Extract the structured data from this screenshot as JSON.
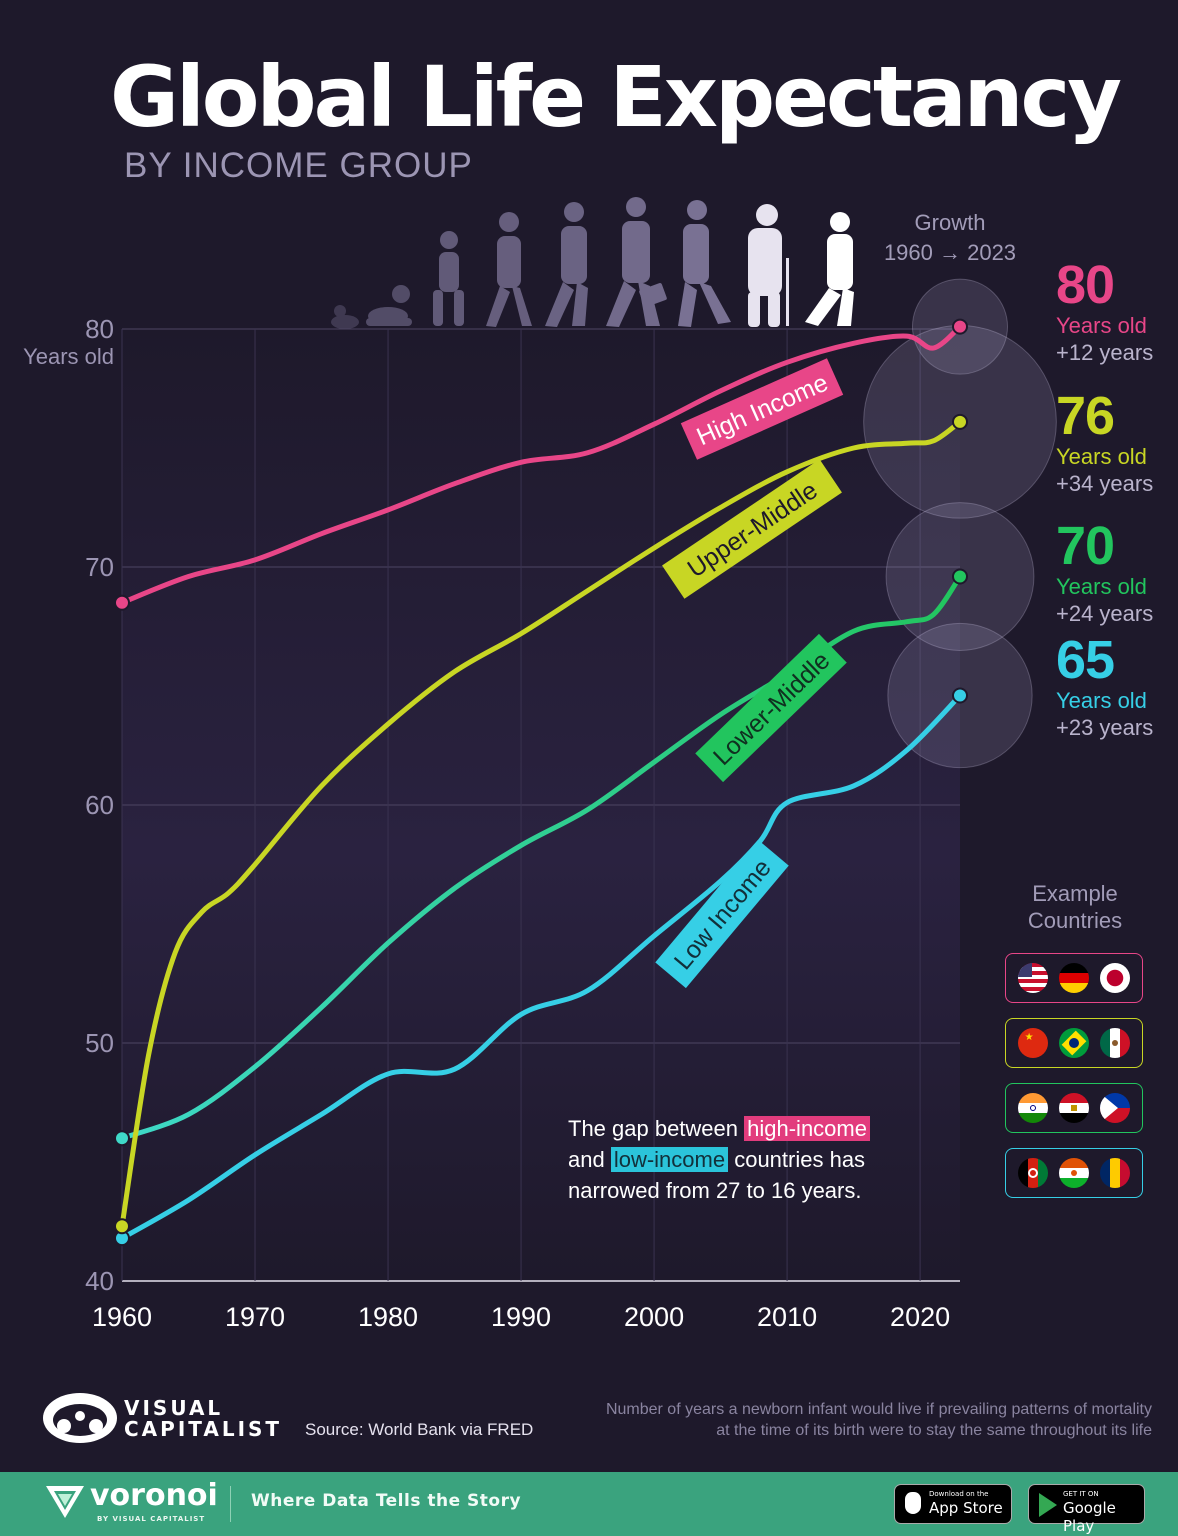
{
  "header": {
    "title": "Global Life Expectancy",
    "subtitle": "BY INCOME GROUP",
    "growth_heading_line1": "Growth",
    "growth_heading_line2": "1960 → 2023"
  },
  "y_axis_unit": "Years old",
  "end_labels": [
    {
      "value": "80",
      "unit": "Years old",
      "growth": "+12 years",
      "color": "#e84688"
    },
    {
      "value": "76",
      "unit": "Years old",
      "growth": "+34  years",
      "color": "#c8d624"
    },
    {
      "value": "70",
      "unit": "Years old",
      "growth": "+24 years",
      "color": "#22c55e"
    },
    {
      "value": "65",
      "unit": "Years old",
      "growth": "+23 years",
      "color": "#36cfe6"
    }
  ],
  "example_countries": {
    "heading_line1": "Example",
    "heading_line2": "Countries",
    "groups": [
      {
        "border": "#e84688",
        "flags": [
          "us-flag",
          "germany-flag",
          "japan-flag"
        ]
      },
      {
        "border": "#c8d624",
        "flags": [
          "china-flag",
          "brazil-flag",
          "mexico-flag"
        ]
      },
      {
        "border": "#22c55e",
        "flags": [
          "india-flag",
          "egypt-flag",
          "philippines-flag"
        ]
      },
      {
        "border": "#36cfe6",
        "flags": [
          "afghanistan-flag",
          "niger-flag",
          "chad-flag"
        ]
      }
    ]
  },
  "note": {
    "part1": "The gap between ",
    "highlight1": "high-income",
    "part2": "and ",
    "highlight2": "low-income",
    "part3": " countries has narrowed from 27 to 16 years."
  },
  "footer": {
    "logo_line1": "VISUAL",
    "logo_line2": "CAPITALIST",
    "source": "Source: World Bank via FRED",
    "definition": "Number of years a newborn infant would live if prevailing patterns of mortality at the time of its birth were to stay the same throughout its life",
    "brand": "voronoi",
    "brand_sub": "BY VISUAL CAPITALIST",
    "tagline": "Where Data Tells the Story",
    "app_store_small": "Download on the",
    "app_store": "App Store",
    "google_play_small": "GET IT ON",
    "google_play": "Google Play"
  },
  "chart_data": {
    "type": "line",
    "title": "Global Life Expectancy",
    "subtitle": "BY INCOME GROUP",
    "xlabel": "",
    "ylabel": "Years old",
    "xlim": [
      1960,
      2023
    ],
    "ylim": [
      40,
      80
    ],
    "x_ticks": [
      1960,
      1970,
      1980,
      1990,
      2000,
      2010,
      2020
    ],
    "y_ticks": [
      40,
      50,
      60,
      70,
      80
    ],
    "grid": true,
    "legend": "labels on lines",
    "series": [
      {
        "name": "High Income",
        "color": "#e84688",
        "x": [
          1960,
          1965,
          1970,
          1975,
          1980,
          1985,
          1990,
          1995,
          2000,
          2005,
          2010,
          2015,
          2019,
          2021,
          2023
        ],
        "y": [
          68.5,
          69.6,
          70.3,
          71.4,
          72.4,
          73.5,
          74.4,
          74.8,
          76.0,
          77.4,
          78.6,
          79.4,
          79.7,
          79.2,
          80.1
        ]
      },
      {
        "name": "Upper-Middle",
        "color": "#c8d624",
        "x": [
          1960,
          1962,
          1964,
          1966,
          1968,
          1970,
          1975,
          1980,
          1985,
          1990,
          1995,
          2000,
          2005,
          2010,
          2015,
          2019,
          2021,
          2023
        ],
        "y": [
          42.3,
          49.5,
          53.8,
          55.5,
          56.3,
          57.5,
          60.8,
          63.4,
          65.6,
          67.2,
          69.0,
          70.8,
          72.5,
          74.0,
          75.0,
          75.2,
          75.3,
          76.1
        ]
      },
      {
        "name": "Lower-Middle",
        "color": "#22c55e",
        "x": [
          1960,
          1965,
          1970,
          1975,
          1980,
          1985,
          1990,
          1995,
          2000,
          2005,
          2010,
          2015,
          2019,
          2021,
          2023
        ],
        "y": [
          46.0,
          47.0,
          49.0,
          51.5,
          54.2,
          56.5,
          58.3,
          59.8,
          61.8,
          63.8,
          65.5,
          67.3,
          67.7,
          68.0,
          69.6
        ]
      },
      {
        "name": "Low Income",
        "color": "#36cfe6",
        "x": [
          1960,
          1965,
          1970,
          1975,
          1980,
          1985,
          1990,
          1995,
          2000,
          2005,
          2008,
          2010,
          2015,
          2019,
          2023
        ],
        "y": [
          41.8,
          43.4,
          45.3,
          47.0,
          48.7,
          48.9,
          51.2,
          52.2,
          54.5,
          56.8,
          58.5,
          60.1,
          60.8,
          62.3,
          64.6
        ]
      }
    ]
  }
}
